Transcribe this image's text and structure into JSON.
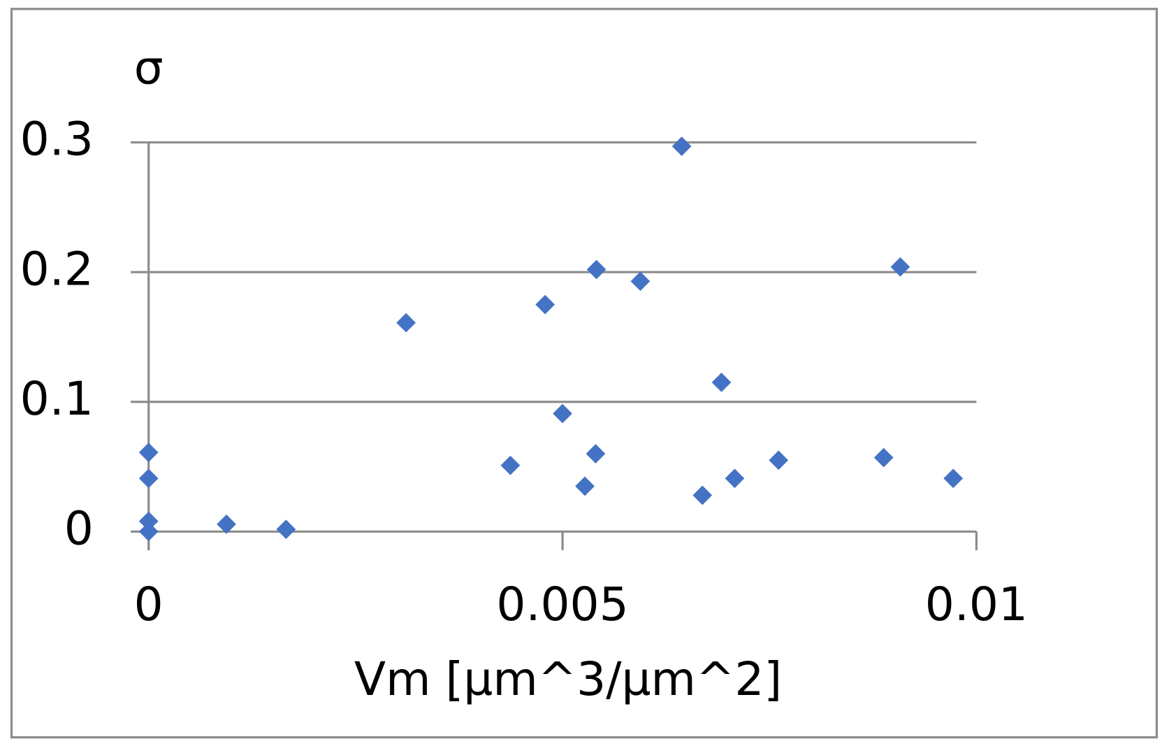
{
  "chart_data": {
    "type": "scatter",
    "title": "σ",
    "x_label": "Vm [µm^3/µm^2]",
    "x": [
      0,
      0,
      0,
      0,
      0.00094,
      0.00166,
      0.00311,
      0.00437,
      0.00479,
      0.005,
      0.00527,
      0.00541,
      0.0054,
      0.00594,
      0.00644,
      0.00669,
      0.00692,
      0.00708,
      0.00761,
      0.00888,
      0.00908,
      0.00972
    ],
    "values": [
      0.061,
      0.041,
      0.008,
      0,
      0.0057,
      0.0017,
      0.161,
      0.051,
      0.175,
      0.091,
      0.035,
      0.202,
      0.06,
      0.193,
      0.297,
      0.028,
      0.115,
      0.041,
      0.055,
      0.057,
      0.204,
      0.041
    ],
    "color": "#4472c4",
    "xlim": [
      0,
      0.01
    ],
    "xticks": [
      0,
      0.005,
      0.01
    ],
    "ylim": [
      0,
      0.3
    ],
    "yticks": [
      0,
      0.1,
      0.2,
      0.3
    ],
    "grid": true
  }
}
